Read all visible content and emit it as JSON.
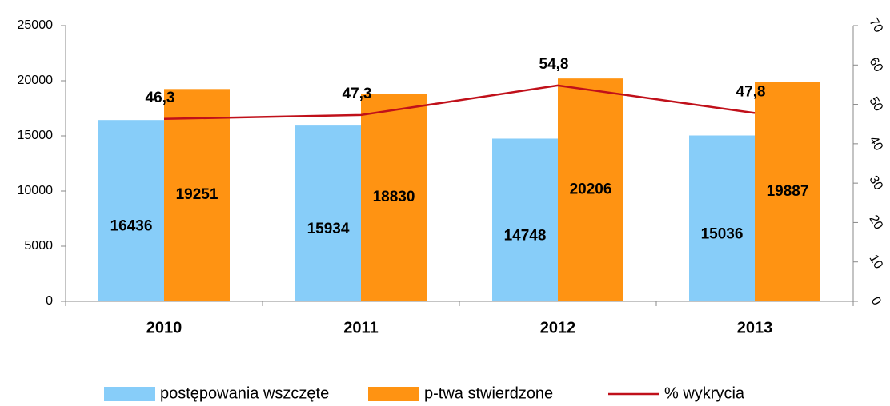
{
  "chart_data": {
    "type": "bar",
    "categories": [
      "2010",
      "2011",
      "2012",
      "2013"
    ],
    "series": [
      {
        "name": "postępowania wszczęte",
        "color": "#87cdf9",
        "values": [
          16436,
          15934,
          14748,
          15036
        ]
      },
      {
        "name": "p-twa stwierdzone",
        "color": "#ff9312",
        "values": [
          19251,
          18830,
          20206,
          19887
        ]
      },
      {
        "name": "% wykrycia",
        "color": "#c0101a",
        "type": "line",
        "axis": "y2",
        "values": [
          46.3,
          47.3,
          54.8,
          47.8
        ],
        "value_labels": [
          "46,3",
          "47,3",
          "54,8",
          "47,8"
        ]
      }
    ],
    "ylim": [
      0,
      25000
    ],
    "yticks": [
      0,
      5000,
      10000,
      15000,
      20000,
      25000
    ],
    "y2lim": [
      0,
      70
    ],
    "y2ticks": [
      0,
      10,
      20,
      30,
      40,
      50,
      60,
      70
    ],
    "legend": "bottom"
  }
}
